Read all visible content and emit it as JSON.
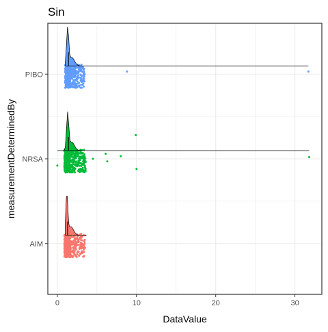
{
  "chart_data": {
    "type": "raincloud",
    "title": "Sin",
    "xlabel": "DataValue",
    "ylabel": "measurementDeterminedBy",
    "xlim": [
      -1.2,
      33.4
    ],
    "x_ticks": [
      0,
      10,
      20,
      30
    ],
    "categories": [
      "AIM",
      "NRSA",
      "PIBO"
    ],
    "grid": true,
    "legend": "none",
    "series": [
      {
        "category": "PIBO",
        "color": "#619CFF",
        "density_range": [
          1.0,
          31.7
        ],
        "density_peak": 1.3,
        "core_range": [
          1.0,
          3.5
        ],
        "outliers": [
          {
            "x": 8.8,
            "y_offset": 0.03
          },
          {
            "x": 31.7,
            "y_offset": 0.03
          }
        ]
      },
      {
        "category": "NRSA",
        "color": "#00BA38",
        "density_range": [
          0.0,
          31.8
        ],
        "density_peak": 1.3,
        "core_range": [
          0.9,
          3.6
        ],
        "outliers": [
          {
            "x": 0.0,
            "y_offset": -0.08
          },
          {
            "x": 4.5,
            "y_offset": 0.0
          },
          {
            "x": 6.1,
            "y_offset": 0.06
          },
          {
            "x": 6.3,
            "y_offset": -0.03
          },
          {
            "x": 8.0,
            "y_offset": 0.03
          },
          {
            "x": 9.9,
            "y_offset": 0.28
          },
          {
            "x": 10.0,
            "y_offset": -0.12
          },
          {
            "x": 31.8,
            "y_offset": 0.02
          }
        ]
      },
      {
        "category": "AIM",
        "color": "#F8766D",
        "density_range": [
          1.0,
          3.7
        ],
        "density_peak": 1.2,
        "core_range": [
          0.9,
          3.5
        ],
        "outliers": []
      }
    ]
  }
}
